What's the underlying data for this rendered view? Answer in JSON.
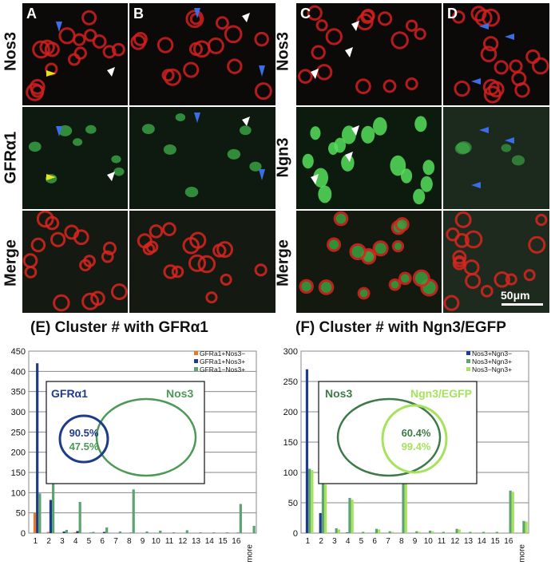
{
  "figure": {
    "panel_letters": [
      "A",
      "B",
      "C",
      "D"
    ],
    "row_labels_left": [
      "Nos3",
      "GFRα1",
      "Merge"
    ],
    "row_labels_right": [
      "Nos3",
      "Ngn3",
      "Merge"
    ],
    "scale_bar": "50μm"
  },
  "chart_data": [
    {
      "type": "bar",
      "panel": "(E)",
      "title": "Cluster # with GFRα1",
      "categories": [
        "1",
        "2",
        "3",
        "4",
        "5",
        "6",
        "7",
        "8",
        "9",
        "10",
        "11",
        "12",
        "13",
        "14",
        "15",
        "16",
        "more"
      ],
      "ylim": [
        0,
        450
      ],
      "yticks": [
        0,
        50,
        100,
        150,
        200,
        250,
        300,
        350,
        400,
        450
      ],
      "series": [
        {
          "name": "GFRa1+Nos3−",
          "color": "#e57a27",
          "values": [
            50,
            3,
            0,
            2,
            0,
            0,
            0,
            0,
            0,
            0,
            0,
            0,
            0,
            0,
            0,
            0,
            0
          ]
        },
        {
          "name": "GFRa1+Nos3+",
          "color": "#1f3b8c",
          "values": [
            420,
            82,
            4,
            5,
            1,
            3,
            0,
            1,
            0,
            0,
            0,
            0,
            0,
            0,
            0,
            1,
            0
          ]
        },
        {
          "name": "GFRa1−Nos3+",
          "color": "#5ca36f",
          "values": [
            98,
            126,
            8,
            77,
            3,
            14,
            4,
            108,
            4,
            6,
            2,
            7,
            2,
            2,
            2,
            72,
            18
          ]
        }
      ],
      "inset": {
        "left_label": "GFRα1",
        "right_label": "Nos3",
        "pct_top": "90.5%",
        "pct_bottom": "47.5%"
      }
    },
    {
      "type": "bar",
      "panel": "(F)",
      "title": "Cluster # with Ngn3/EGFP",
      "categories": [
        "1",
        "2",
        "3",
        "4",
        "5",
        "6",
        "7",
        "8",
        "9",
        "10",
        "11",
        "12",
        "13",
        "14",
        "15",
        "16",
        "more"
      ],
      "ylim": [
        0,
        300
      ],
      "yticks": [
        0,
        50,
        100,
        150,
        200,
        250,
        300
      ],
      "series": [
        {
          "name": "Nos3+Ngn3−",
          "color": "#1f3b8c",
          "values": [
            270,
            33,
            0,
            1,
            0,
            0,
            0,
            0,
            0,
            0,
            0,
            0,
            0,
            0,
            0,
            0,
            0
          ]
        },
        {
          "name": "Nos3+Ngn3+",
          "color": "#5ca36f",
          "values": [
            106,
            84,
            8,
            58,
            2,
            7,
            3,
            86,
            3,
            4,
            2,
            7,
            2,
            2,
            2,
            70,
            20
          ]
        },
        {
          "name": "Nos3−Ngn3+",
          "color": "#a6e35c",
          "values": [
            104,
            80,
            6,
            55,
            1,
            6,
            2,
            84,
            2,
            3,
            1,
            6,
            1,
            1,
            1,
            68,
            19
          ]
        }
      ],
      "inset": {
        "left_label": "Nos3",
        "right_label": "Ngn3/EGFP",
        "pct_top": "60.4%",
        "pct_bottom": "99.4%"
      }
    }
  ]
}
